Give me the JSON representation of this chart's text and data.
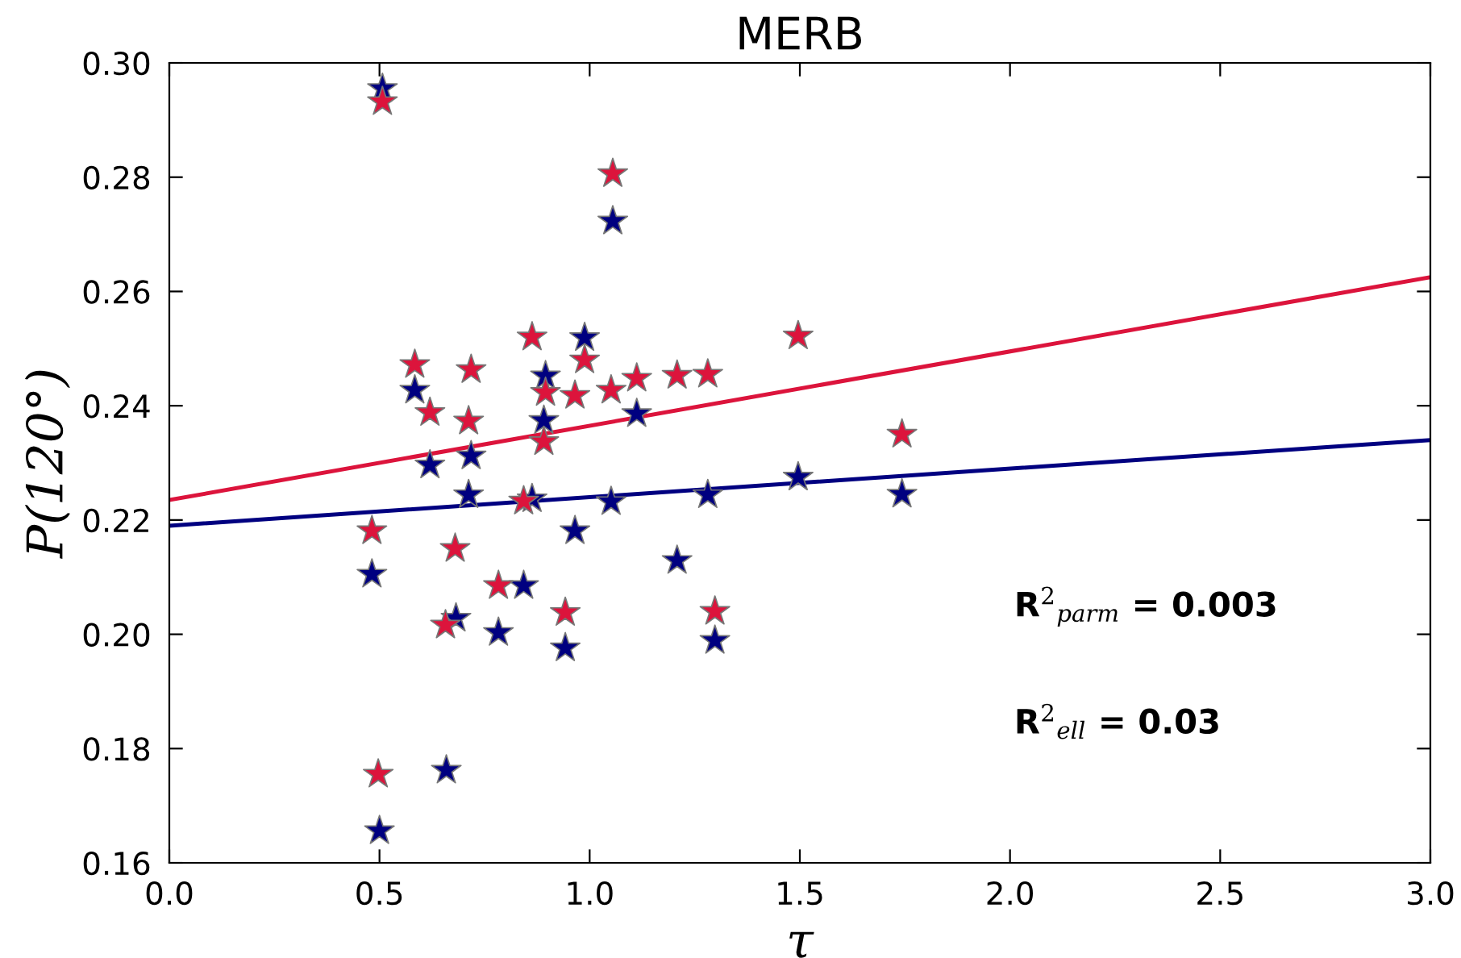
{
  "chart_data": {
    "type": "scatter",
    "title": "MERB",
    "xlabel": "τ",
    "ylabel": "P(120°)",
    "xlim": [
      0,
      3
    ],
    "ylim": [
      0.16,
      0.3
    ],
    "xticks": [
      {
        "value": 0,
        "label": "0.0"
      },
      {
        "value": 0.5,
        "label": "0.5"
      },
      {
        "value": 1,
        "label": "1.0"
      },
      {
        "value": 1.5,
        "label": "1.5"
      },
      {
        "value": 2,
        "label": "2.0"
      },
      {
        "value": 2.5,
        "label": "2.5"
      },
      {
        "value": 3,
        "label": "3.0"
      }
    ],
    "yticks": [
      {
        "value": 0.16,
        "label": "0.16"
      },
      {
        "value": 0.18,
        "label": "0.18"
      },
      {
        "value": 0.2,
        "label": "0.20"
      },
      {
        "value": 0.22,
        "label": "0.22"
      },
      {
        "value": 0.24,
        "label": "0.24"
      },
      {
        "value": 0.26,
        "label": "0.26"
      },
      {
        "value": 0.28,
        "label": "0.28"
      },
      {
        "value": 0.3,
        "label": "0.30"
      }
    ],
    "grid": false,
    "legend": false,
    "series": [
      {
        "marker": "star",
        "color": "#000080",
        "x": [
          0.507,
          1.055,
          0.988,
          0.895,
          0.584,
          0.891,
          1.112,
          0.62,
          0.718,
          0.712,
          0.863,
          1.051,
          1.281,
          1.496,
          0.965,
          1.208,
          0.482,
          0.843,
          0.682,
          0.783,
          0.942,
          1.298,
          0.659,
          0.5,
          1.743
        ],
        "values": [
          0.2955,
          0.2723,
          0.2519,
          0.2452,
          0.2427,
          0.2374,
          0.2386,
          0.2296,
          0.2312,
          0.2244,
          0.2237,
          0.2232,
          0.2244,
          0.2275,
          0.2181,
          0.2129,
          0.2105,
          0.2085,
          0.2028,
          0.2003,
          0.1976,
          0.1989,
          0.1762,
          0.1656,
          0.2245
        ]
      },
      {
        "marker": "star",
        "color": "#dc143c",
        "x": [
          0.507,
          1.055,
          0.863,
          0.988,
          0.584,
          0.718,
          0.895,
          0.965,
          1.051,
          1.112,
          1.208,
          1.281,
          1.496,
          0.62,
          0.712,
          0.891,
          0.843,
          0.482,
          0.68,
          0.783,
          0.657,
          0.942,
          1.298,
          0.497,
          1.743
        ],
        "values": [
          0.2932,
          0.2806,
          0.252,
          0.248,
          0.2472,
          0.2463,
          0.2423,
          0.2418,
          0.2427,
          0.2448,
          0.2453,
          0.2455,
          0.2522,
          0.2388,
          0.2373,
          0.2337,
          0.2233,
          0.2181,
          0.215,
          0.2085,
          0.2016,
          0.2038,
          0.204,
          0.1755,
          0.235
        ]
      },
      {
        "type": "line",
        "marker": "none",
        "color": "#000080",
        "x": [
          0,
          3
        ],
        "values": [
          0.219,
          0.234
        ]
      },
      {
        "type": "line",
        "marker": "none",
        "color": "#dc143c",
        "x": [
          0,
          3
        ],
        "values": [
          0.2235,
          0.2625
        ]
      }
    ],
    "annotations": [
      "R$^{2}$$_{parm}$ = 0.003",
      "R$^{2}$$_{ell}$ = 0.03"
    ]
  }
}
